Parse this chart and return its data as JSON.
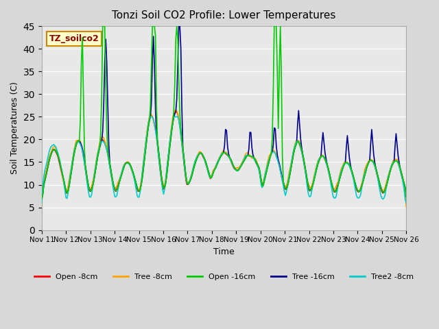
{
  "title": "Tonzi Soil CO2 Profile: Lower Temperatures",
  "xlabel": "Time",
  "ylabel": "Soil Temperatures (C)",
  "ylim": [
    0,
    45
  ],
  "yticks": [
    0,
    5,
    10,
    15,
    20,
    25,
    30,
    35,
    40,
    45
  ],
  "box_label": "TZ_soilco2",
  "box_label_color": "#8b0000",
  "box_bg_color": "#ffffcc",
  "box_border_color": "#cc8800",
  "legend_entries": [
    "Open -8cm",
    "Tree -8cm",
    "Open -16cm",
    "Tree -16cm",
    "Tree2 -8cm"
  ],
  "line_colors": [
    "#ff0000",
    "#ffa500",
    "#00cc00",
    "#00008b",
    "#00cccc"
  ],
  "x_tick_labels": [
    "Nov 11",
    "Nov 12",
    "Nov 13",
    "Nov 14",
    "Nov 15",
    "Nov 16",
    "Nov 17",
    "Nov 18",
    "Nov 19",
    "Nov 20",
    "Nov 21",
    "Nov 22",
    "Nov 23",
    "Nov 24",
    "Nov 25",
    "Nov 26"
  ]
}
